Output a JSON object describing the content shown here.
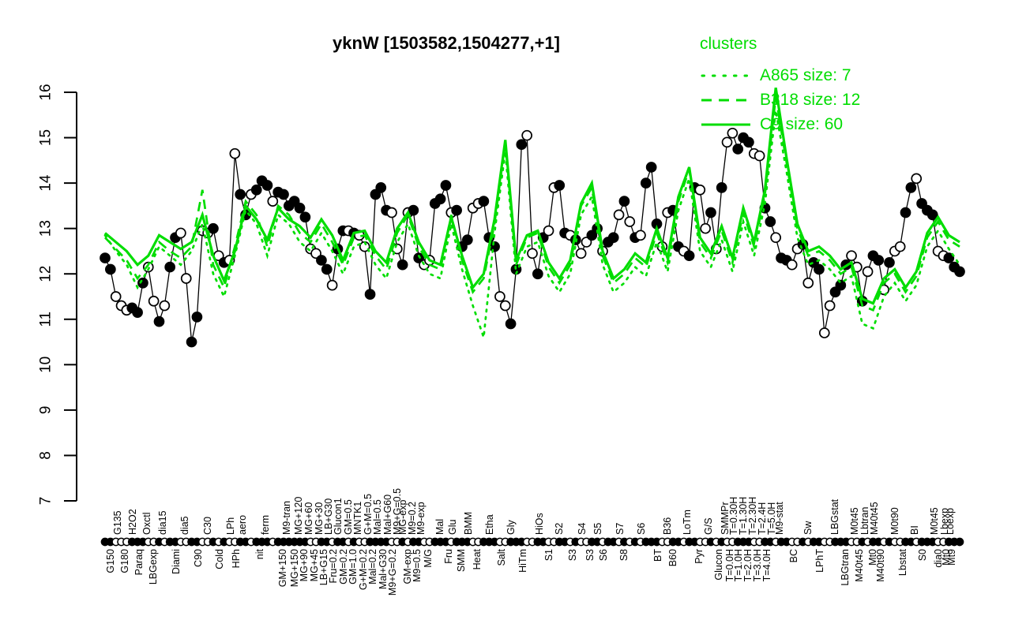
{
  "title": "yknW [1503582,1504277,+1]",
  "legend": {
    "title": "clusters",
    "entries": [
      {
        "label": "A865 size: 7",
        "style": "dotted"
      },
      {
        "label": "B318 size: 12",
        "style": "dashed"
      },
      {
        "label": "C9 size: 60",
        "style": "solid"
      }
    ]
  },
  "colors": {
    "cluster": "#00dd00",
    "series": "#000000",
    "background": "#ffffff"
  },
  "chart_data": {
    "type": "line",
    "title": "yknW [1503582,1504277,+1]",
    "xlabel": "",
    "ylabel": "",
    "ylim": [
      7,
      16
    ],
    "yticks": [
      7,
      8,
      9,
      10,
      11,
      12,
      13,
      14,
      15,
      16
    ],
    "grid": false,
    "legend_position": "top-right",
    "series_main": {
      "name": "yknW expression",
      "marker": "circle",
      "point_fill_pattern": "FFOOOFFFOOFOFFOOFFOOFOFOOFFOFFFOFFFFFFOOFFOFFOFOOFFFFOOFOFFOOFFFOFFFOOFFFOOFFFOOFFOOFFOFOOFFOFFOFOFOFFFOOFFOFFOOFOFOOFFFOOFFOFFOOFOFFOOFFFOOFOFFOFOOFFOFFFOOFFF",
      "values": [
        12.35,
        12.1,
        11.5,
        11.3,
        11.2,
        11.25,
        11.15,
        11.8,
        12.15,
        11.4,
        10.95,
        11.3,
        12.15,
        12.8,
        12.9,
        11.9,
        10.5,
        11.05,
        12.95,
        12.9,
        13.0,
        12.4,
        12.25,
        12.3,
        14.65,
        13.75,
        13.3,
        13.75,
        13.85,
        14.05,
        13.95,
        13.6,
        13.8,
        13.75,
        13.5,
        13.6,
        13.45,
        13.25,
        12.55,
        12.45,
        12.3,
        12.1,
        11.75,
        12.55,
        12.95,
        12.95,
        12.9,
        12.85,
        12.6,
        11.55,
        13.75,
        13.9,
        13.4,
        13.35,
        12.55,
        12.2,
        13.35,
        13.4,
        12.35,
        12.2,
        12.3,
        13.55,
        13.65,
        13.95,
        13.35,
        13.4,
        12.6,
        12.75,
        13.45,
        13.55,
        13.6,
        12.8,
        12.6,
        11.5,
        11.3,
        10.9,
        12.1,
        14.85,
        15.05,
        12.45,
        12.0,
        12.8,
        12.95,
        13.9,
        13.95,
        12.9,
        12.85,
        12.75,
        12.45,
        12.7,
        12.85,
        13.0,
        12.5,
        12.7,
        12.8,
        13.3,
        13.6,
        13.15,
        12.8,
        12.85,
        14.0,
        14.35,
        13.1,
        12.6,
        13.35,
        13.4,
        12.6,
        12.5,
        12.4,
        13.9,
        13.85,
        13.0,
        13.35,
        12.55,
        13.9,
        14.9,
        15.1,
        14.75,
        15.0,
        14.9,
        14.65,
        14.6,
        13.45,
        13.15,
        12.8,
        12.35,
        12.3,
        12.2,
        12.55,
        12.65,
        11.8,
        12.25,
        12.1,
        10.7,
        11.3,
        11.6,
        11.75,
        12.2,
        12.4,
        12.15,
        11.4,
        12.05,
        12.4,
        12.3,
        11.65,
        12.25,
        12.5,
        12.6,
        13.35,
        13.9,
        14.1,
        13.55,
        13.4,
        13.3,
        12.5,
        12.4,
        12.35,
        12.15,
        12.05
      ]
    },
    "clusters": [
      {
        "name": "A865",
        "size": 7,
        "linestyle": "dotted",
        "values": [
          12.85,
          12.5,
          12.2,
          11.7,
          12.1,
          12.6,
          12.4,
          12.2,
          12.5,
          13.1,
          12.0,
          11.5,
          12.4,
          13.4,
          13.1,
          12.4,
          13.3,
          13.1,
          12.7,
          12.5,
          12.9,
          12.5,
          12.0,
          12.6,
          12.7,
          12.2,
          11.9,
          12.7,
          13.1,
          12.4,
          12.0,
          11.9,
          13.1,
          12.1,
          11.3,
          10.6,
          12.9,
          14.7,
          12.0,
          12.6,
          12.7,
          11.95,
          11.6,
          12.0,
          13.3,
          13.7,
          12.2,
          11.6,
          11.8,
          12.15,
          11.95,
          12.7,
          12.05,
          13.4,
          14.1,
          12.5,
          12.15,
          12.75,
          12.05,
          13.15,
          12.4,
          13.55,
          15.6,
          14.25,
          12.8,
          12.2,
          12.3,
          12.1,
          11.8,
          11.95,
          10.9,
          10.8,
          11.5,
          11.8,
          11.4,
          11.75,
          12.6,
          12.95,
          12.55,
          12.2
        ]
      },
      {
        "name": "B318",
        "size": 12,
        "linestyle": "dashed",
        "values": [
          12.8,
          12.55,
          12.3,
          11.9,
          12.2,
          12.7,
          12.5,
          12.35,
          12.6,
          13.85,
          12.2,
          11.7,
          12.6,
          13.6,
          13.3,
          12.6,
          13.5,
          13.3,
          12.9,
          12.7,
          13.1,
          12.7,
          12.2,
          12.8,
          12.85,
          12.4,
          12.1,
          12.9,
          13.3,
          12.6,
          12.2,
          12.1,
          13.3,
          12.3,
          11.6,
          11.9,
          13.1,
          14.9,
          12.2,
          12.8,
          12.9,
          12.15,
          11.8,
          12.2,
          13.5,
          13.9,
          12.4,
          11.8,
          12.0,
          12.35,
          12.15,
          12.9,
          12.25,
          13.6,
          14.3,
          12.7,
          12.35,
          12.95,
          12.25,
          13.35,
          12.6,
          13.75,
          15.9,
          14.45,
          13.0,
          12.4,
          12.5,
          12.3,
          12.0,
          12.15,
          11.3,
          11.2,
          11.8,
          12.0,
          11.6,
          11.95,
          12.8,
          13.15,
          12.75,
          12.6
        ]
      },
      {
        "name": "C9",
        "size": 60,
        "linestyle": "solid",
        "values": [
          12.9,
          12.7,
          12.5,
          12.2,
          12.4,
          12.85,
          12.7,
          12.55,
          12.7,
          13.3,
          12.4,
          11.85,
          12.5,
          13.5,
          13.2,
          12.75,
          13.45,
          13.2,
          13.05,
          12.8,
          13.2,
          12.85,
          12.3,
          12.9,
          12.95,
          12.5,
          12.25,
          13.0,
          13.35,
          12.7,
          12.3,
          12.2,
          13.25,
          12.4,
          11.7,
          12.0,
          13.2,
          14.95,
          12.3,
          12.85,
          12.95,
          12.25,
          11.9,
          12.3,
          13.55,
          14.0,
          12.5,
          11.9,
          12.1,
          12.45,
          12.25,
          13.0,
          12.35,
          13.7,
          14.35,
          12.8,
          12.45,
          13.05,
          12.35,
          13.45,
          12.7,
          13.85,
          16.1,
          14.55,
          13.1,
          12.5,
          12.6,
          12.4,
          12.1,
          12.25,
          11.45,
          11.35,
          11.9,
          12.1,
          11.7,
          12.05,
          12.9,
          13.25,
          12.85,
          12.7
        ]
      }
    ],
    "x_labels": [
      [
        "G150",
        140,
        "b"
      ],
      [
        "G135",
        149,
        "t"
      ],
      [
        "G180",
        158,
        "b"
      ],
      [
        "H2O2",
        168,
        "t"
      ],
      [
        "Paraq",
        176,
        "b"
      ],
      [
        "Oxctl",
        186,
        "t"
      ],
      [
        "LBGexp",
        194,
        "b"
      ],
      [
        "dia15",
        206,
        "t"
      ],
      [
        "Diami",
        223,
        "b"
      ],
      [
        "dia5",
        234,
        "t"
      ],
      [
        "C90",
        251,
        "b"
      ],
      [
        "C30",
        263,
        "t"
      ],
      [
        "Cold",
        278,
        "b"
      ],
      [
        "LPh",
        292,
        "t"
      ],
      [
        "HPh",
        299,
        "b"
      ],
      [
        "aero",
        307,
        "t"
      ],
      [
        "nit",
        329,
        "b"
      ],
      [
        "ferm",
        336,
        "t"
      ],
      [
        "GM+150",
        358,
        "b"
      ],
      [
        "M9-tran",
        363,
        "t"
      ],
      [
        "MG+150",
        373,
        "b"
      ],
      [
        "MG+120",
        378,
        "t"
      ],
      [
        "MG+90",
        385,
        "b"
      ],
      [
        "MG+60",
        391,
        "t"
      ],
      [
        "MG+45",
        398,
        "b"
      ],
      [
        "MG+30",
        404,
        "t"
      ],
      [
        "LB+G15",
        410,
        "b"
      ],
      [
        "LB+G30",
        416,
        "t"
      ],
      [
        "Fru=0.2",
        422,
        "b"
      ],
      [
        "Glucon1",
        428,
        "t"
      ],
      [
        "GM=0.2",
        435,
        "b"
      ],
      [
        "GM=0.5",
        441,
        "t"
      ],
      [
        "GM=1.0",
        447,
        "b"
      ],
      [
        "MNTK1",
        453,
        "t"
      ],
      [
        "G+M=0.2",
        460,
        "b"
      ],
      [
        "G+M=0.5",
        466,
        "t"
      ],
      [
        "Mal=0.2",
        472,
        "b"
      ],
      [
        "Mal=0.5",
        478,
        "t"
      ],
      [
        "Mal+G30",
        485,
        "b"
      ],
      [
        "Mal+G60",
        491,
        "t"
      ],
      [
        "M9+G=0.2",
        497,
        "b"
      ],
      [
        "M9+G=0.5",
        503,
        "t"
      ],
      [
        "MG-exp",
        510,
        "t"
      ],
      [
        "GM-exp",
        516,
        "b"
      ],
      [
        "M9=0.2",
        522,
        "t"
      ],
      [
        "M9=0.5",
        528,
        "b"
      ],
      [
        "M9-exp",
        533,
        "t"
      ],
      [
        "M/G",
        542,
        "b"
      ],
      [
        "Mal",
        557,
        "t"
      ],
      [
        "Fru",
        568,
        "b"
      ],
      [
        "Glu",
        573,
        "t"
      ],
      [
        "SMM",
        584,
        "b"
      ],
      [
        "BMM",
        593,
        "t"
      ],
      [
        "Heat",
        604,
        "b"
      ],
      [
        "Etha",
        620,
        "t"
      ],
      [
        "Salt",
        635,
        "b"
      ],
      [
        "Gly",
        647,
        "t"
      ],
      [
        "HiTm",
        662,
        "b"
      ],
      [
        "HiOs",
        683,
        "t"
      ],
      [
        "S1",
        695,
        "b"
      ],
      [
        "S2",
        708,
        "t"
      ],
      [
        "S3",
        725,
        "b"
      ],
      [
        "S4",
        737,
        "t"
      ],
      [
        "S3",
        747,
        "b"
      ],
      [
        "S5",
        757,
        "t"
      ],
      [
        "S6",
        764,
        "b"
      ],
      [
        "S7",
        785,
        "t"
      ],
      [
        "S8",
        790,
        "b"
      ],
      [
        "S6",
        812,
        "t"
      ],
      [
        "BT",
        833,
        "b"
      ],
      [
        "B36",
        845,
        "t"
      ],
      [
        "B60",
        852,
        "b"
      ],
      [
        "LoTm",
        870,
        "t"
      ],
      [
        "Pyr",
        885,
        "b"
      ],
      [
        "G/S",
        897,
        "t"
      ],
      [
        "Glucon",
        910,
        "b"
      ],
      [
        "SMMPr",
        918,
        "t"
      ],
      [
        "T=0.0H",
        924,
        "b"
      ],
      [
        "T=0.30H",
        929,
        "t"
      ],
      [
        "T=1.0H",
        935,
        "b"
      ],
      [
        "T=1.30H",
        941,
        "t"
      ],
      [
        "T=2.0H",
        947,
        "b"
      ],
      [
        "T=2.30H",
        953,
        "t"
      ],
      [
        "T=3.0H",
        959,
        "b"
      ],
      [
        "T=2.4H",
        965,
        "t"
      ],
      [
        "T=4.0H",
        971,
        "b"
      ],
      [
        "T=5.0H",
        977,
        "t"
      ],
      [
        "M9-stat",
        987,
        "t"
      ],
      [
        "BC",
        1005,
        "b"
      ],
      [
        "Sw",
        1023,
        "t"
      ],
      [
        "LPhT",
        1038,
        "b"
      ],
      [
        "LBGstat",
        1057,
        "t"
      ],
      [
        "LBGtran",
        1070,
        "b"
      ],
      [
        "M0t45",
        1082,
        "t"
      ],
      [
        "M40t45",
        1088,
        "b"
      ],
      [
        "Lbtran",
        1095,
        "t"
      ],
      [
        "Mt0",
        1105,
        "b"
      ],
      [
        "M40t45",
        1107,
        "t"
      ],
      [
        "M40t90",
        1115,
        "b"
      ],
      [
        "M0t90",
        1133,
        "t"
      ],
      [
        "Lbstat",
        1143,
        "b"
      ],
      [
        "BI",
        1158,
        "t"
      ],
      [
        "S0",
        1168,
        "b"
      ],
      [
        "M0t45",
        1183,
        "t"
      ],
      [
        "dia0",
        1188,
        "b"
      ],
      [
        "Lbexp",
        1196,
        "t"
      ],
      [
        "Mt0",
        1198,
        "b"
      ],
      [
        "Loexp",
        1203,
        "t"
      ],
      [
        "Mt9",
        1205,
        "b"
      ]
    ]
  }
}
